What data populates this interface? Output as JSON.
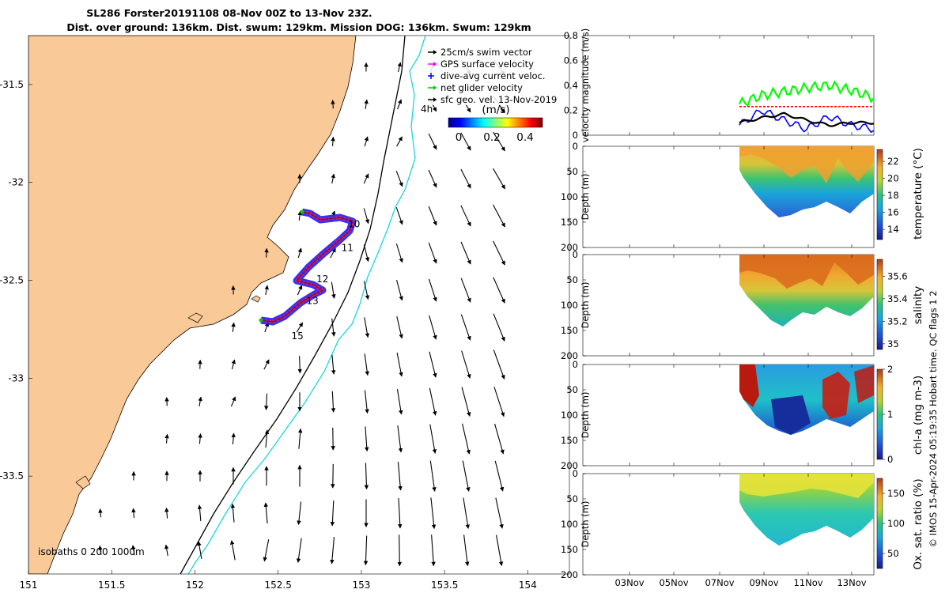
{
  "header": {
    "title_line1": "SL286 Forster20191108 08-Nov 00Z to 13-Nov 23Z.",
    "title_line2": "Dist. over ground: 136km. Dist. swum: 129km. Mission DOG: 136km. Swum: 129km"
  },
  "map": {
    "x_ticks": [
      "151",
      "151.5",
      "152",
      "152.5",
      "153",
      "153.5",
      "154"
    ],
    "y_ticks": [
      "-31.5",
      "-32",
      "-32.5",
      "-33",
      "-33.5"
    ],
    "xlim": [
      151,
      154.25
    ],
    "ylim": [
      -34.0,
      -31.25
    ],
    "isobaths_label": "isobaths 0  200  1000m",
    "land_color": "#f9c997",
    "path_color_red": "#ff0000",
    "path_color_blue": "#0000ff",
    "day_labels": [
      {
        "text": "10",
        "lon": 152.92,
        "lat": -32.23
      },
      {
        "text": "11",
        "lon": 152.88,
        "lat": -32.35
      },
      {
        "text": "12",
        "lon": 152.73,
        "lat": -32.51
      },
      {
        "text": "13",
        "lon": 152.67,
        "lat": -32.62
      },
      {
        "text": "15",
        "lon": 152.58,
        "lat": -32.8
      }
    ],
    "time_marker": "4h",
    "legend": {
      "items": [
        {
          "label": "25cm/s swim vector",
          "color": "#000000",
          "icon": "arrow-icon"
        },
        {
          "label": "GPS surface velocity",
          "color": "#ff00ff",
          "icon": "arrow-icon"
        },
        {
          "label": "dive-avg current veloc.",
          "color": "#0000ff",
          "icon": "plus-icon"
        },
        {
          "label": "net glider velocity",
          "color": "#00cc00",
          "icon": "arrow-icon"
        },
        {
          "label": "sfc geo. vel. 13-Nov-2019",
          "color": "#000000",
          "icon": "arrow-icon"
        }
      ]
    },
    "colorbar": {
      "label": "(m/s)",
      "ticks": [
        "0",
        "0.2",
        "0.4"
      ]
    }
  },
  "panels": {
    "x_ticks": [
      "03Nov",
      "05Nov",
      "07Nov",
      "09Nov",
      "11Nov",
      "13Nov"
    ],
    "velocity": {
      "ylabel": "velocity magnitude (m/s)",
      "y_ticks": [
        "0",
        "0.2",
        "0.4",
        "0.6",
        "0.8"
      ]
    },
    "depth_ylabel": "Depth (m)",
    "depth_ticks": [
      "0",
      "50",
      "100",
      "150",
      "200"
    ],
    "temperature": {
      "label": "temperature (°C)",
      "ticks": [
        "14",
        "16",
        "18",
        "20",
        "22"
      ]
    },
    "salinity": {
      "label": "salinity",
      "ticks": [
        "35",
        "35.2",
        "35.4",
        "35.6"
      ]
    },
    "chla": {
      "label": "chl-a (mg m-3)",
      "ticks": [
        "0",
        "1",
        "2"
      ]
    },
    "oxygen": {
      "label": "Ox. sat. ratio (%)",
      "ticks": [
        "50",
        "100",
        "150"
      ]
    }
  },
  "footer": {
    "credit": "© IMOS 15-Apr-2024 05:19:35 Hobart time. QC flags 1  2"
  },
  "chart_data": [
    {
      "type": "scatter",
      "title": "SL286 Forster20191108 08-Nov 00Z to 13-Nov 23Z.",
      "xlim": [
        151,
        154.25
      ],
      "ylim": [
        -34.0,
        -31.25
      ],
      "glider_track": {
        "lon": [
          152.52,
          152.62,
          152.7,
          152.75,
          152.6,
          152.72,
          152.86,
          152.9,
          152.78,
          152.55
        ],
        "lat": [
          -32.7,
          -32.66,
          -32.58,
          -32.55,
          -32.5,
          -32.38,
          -32.25,
          -32.18,
          -32.17,
          -32.14
        ]
      }
    },
    {
      "type": "line",
      "ylabel": "velocity magnitude (m/s)",
      "ylim": [
        0,
        0.8
      ],
      "x": [
        "08Nov",
        "09Nov",
        "10Nov",
        "11Nov",
        "12Nov",
        "13Nov",
        "14Nov"
      ],
      "series": [
        {
          "color": "#00ff00",
          "values": [
            0.25,
            0.32,
            0.35,
            0.38,
            0.4,
            0.36,
            0.3
          ]
        },
        {
          "color": "#0000ff",
          "values": [
            0.08,
            0.2,
            0.12,
            0.05,
            0.15,
            0.08,
            0.05
          ]
        },
        {
          "color": "#000000",
          "values": [
            0.1,
            0.14,
            0.17,
            0.12,
            0.08,
            0.1,
            0.1
          ]
        },
        {
          "color": "#ff0000",
          "values": [
            0.23,
            0.23,
            0.23,
            0.23,
            0.23,
            0.23,
            0.23
          ]
        }
      ]
    }
  ]
}
